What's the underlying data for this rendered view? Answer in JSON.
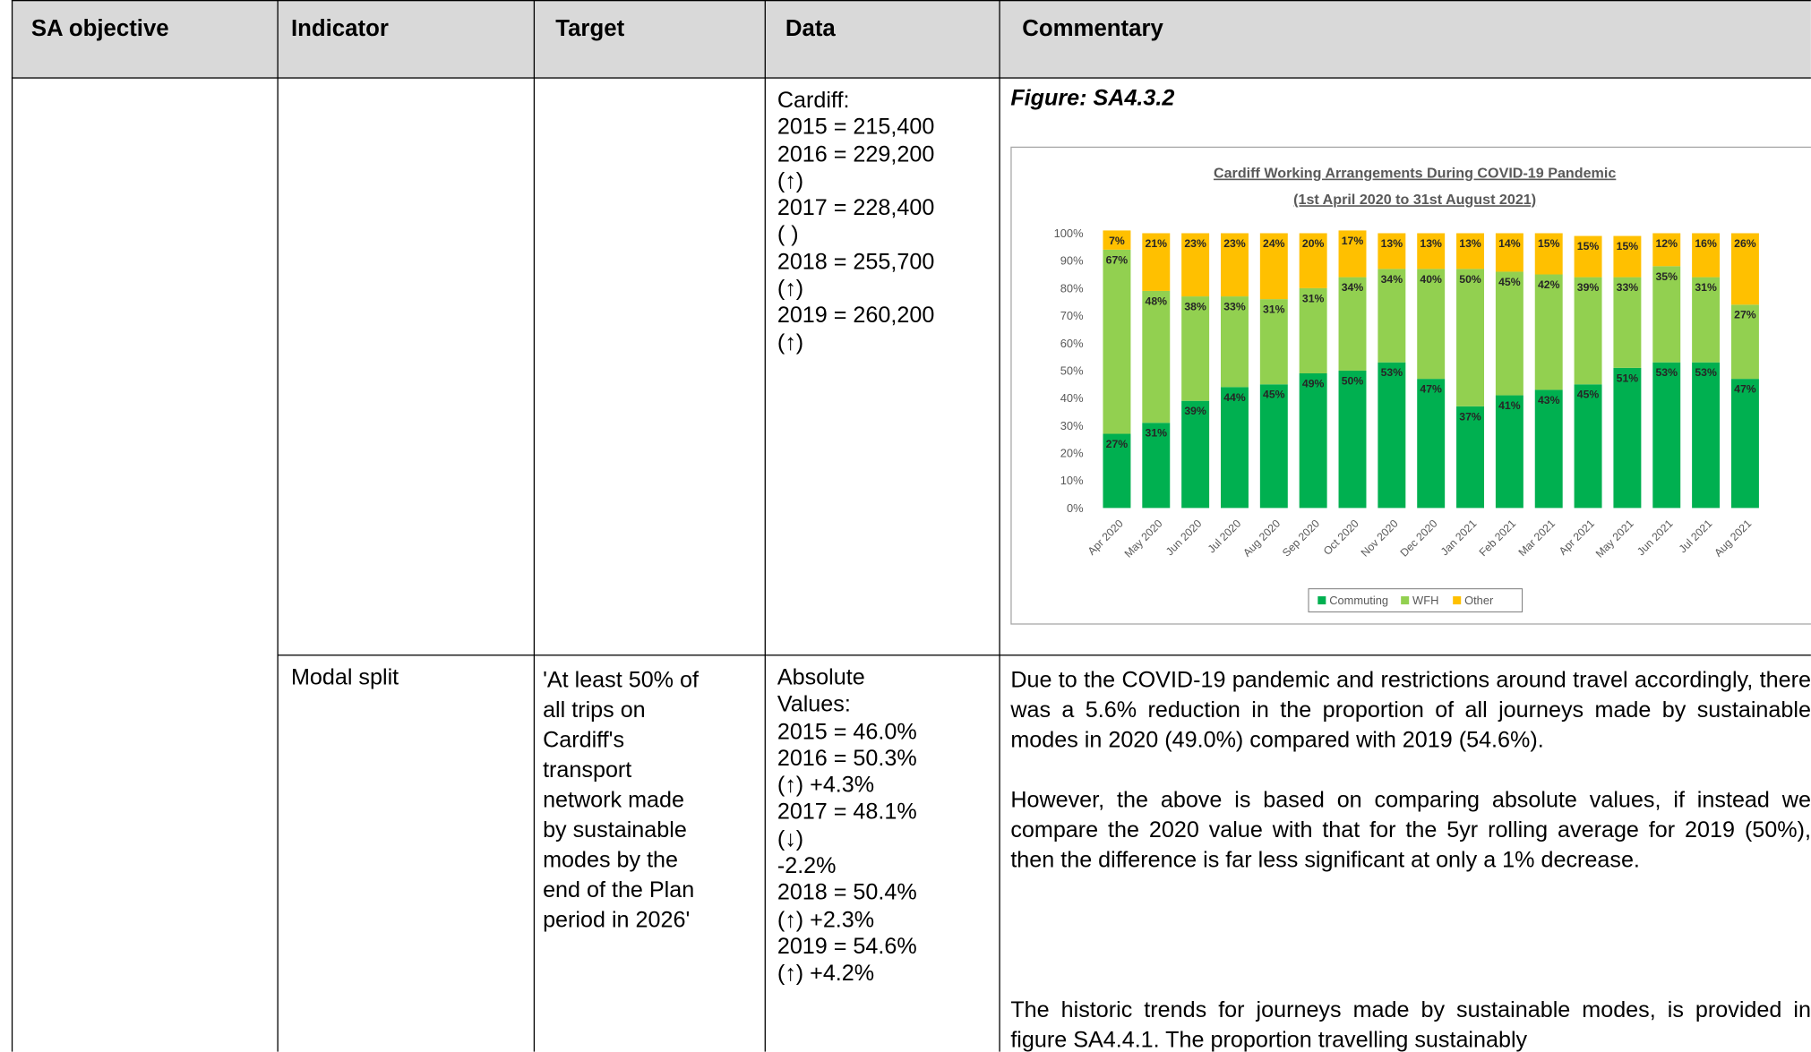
{
  "table": {
    "header": [
      "SA objective",
      "Indicator",
      "Target",
      "Data",
      "Commentary"
    ],
    "rows": [
      {
        "data": [
          "Cardiff:",
          "2015 = 215,400",
          "2016 = 229,200",
          "(↑)",
          "2017 = 228,400",
          "( )",
          "2018 = 255,700",
          "(↑)",
          "2019 = 260,200",
          "(↑)"
        ],
        "figure_label": "Figure: SA4.3.2"
      },
      {
        "indicator": "Modal split",
        "target": [
          "'At least 50% of",
          "all trips on",
          "Cardiff's",
          "transport",
          "network made",
          "by sustainable",
          "modes by the",
          "end of the Plan",
          "period in 2026'"
        ],
        "data": [
          "Absolute",
          "Values:",
          "2015 = 46.0%",
          "2016 = 50.3%",
          "(↑) +4.3%",
          "2017 = 48.1%",
          "(↓)",
          "-2.2%",
          "2018 = 50.4%",
          "(↑) +2.3%",
          "2019 = 54.6%",
          "(↑) +4.2%"
        ],
        "commentary": [
          "Due to the COVID-19 pandemic and restrictions around travel accordingly, there was a 5.6% reduction in the proportion of all journeys made by sustainable modes in 2020 (49.0%) compared with 2019 (54.6%).",
          "However, the above is based on comparing absolute values, if instead we compare the 2020 value with that for the 5yr rolling average for 2019 (50%), then the difference is far less significant at only a 1% decrease.",
          "The historic trends for journeys made by sustainable modes, is provided in figure SA4.4.1. The proportion travelling sustainably"
        ]
      }
    ]
  },
  "chart_data": {
    "type": "stacked_bar",
    "title": "Cardiff Working Arrangements During COVID-19 Pandemic",
    "subtitle": "(1st April 2020 to 31st August 2021)",
    "categories": [
      "Apr 2020",
      "May 2020",
      "Jun 2020",
      "Jul 2020",
      "Aug 2020",
      "Sep 2020",
      "Oct 2020",
      "Nov 2020",
      "Dec 2020",
      "Jan 2021",
      "Feb 2021",
      "Mar 2021",
      "Apr 2021",
      "May 2021",
      "Jun 2021",
      "Jul 2021",
      "Aug 2021"
    ],
    "series": [
      {
        "name": "Commuting",
        "color": "#00b050",
        "values": [
          27,
          31,
          39,
          44,
          45,
          49,
          50,
          53,
          47,
          37,
          41,
          43,
          45,
          51,
          53,
          53,
          47
        ],
        "value_labels": [
          "27%",
          "31%",
          "39%",
          "44%",
          "45%",
          "49%",
          "50%",
          "53%",
          "47%",
          "37%",
          "41%",
          "43%",
          "45%",
          "51%",
          "53%",
          "53%",
          "47%"
        ]
      },
      {
        "name": "WFH",
        "color": "#92d050",
        "values": [
          67,
          48,
          38,
          33,
          31,
          31,
          34,
          34,
          40,
          50,
          45,
          42,
          39,
          33,
          35,
          31,
          27
        ],
        "value_labels": [
          "67%",
          "48%",
          "38%",
          "33%",
          "31%",
          "31%",
          "34%",
          "34%",
          "40%",
          "50%",
          "45%",
          "42%",
          "39%",
          "33%",
          "35%",
          "31%",
          "27%"
        ]
      },
      {
        "name": "Other",
        "color": "#ffc000",
        "values": [
          7,
          21,
          23,
          23,
          24,
          20,
          17,
          13,
          13,
          13,
          14,
          15,
          15,
          15,
          12,
          16,
          26
        ],
        "value_labels": [
          "7%",
          "21%",
          "23%",
          "23%",
          "24%",
          "20%",
          "17%",
          "13%",
          "13%",
          "13%",
          "14%",
          "15%",
          "15%",
          "15%",
          "12%",
          "16%",
          "26%"
        ]
      }
    ],
    "ylim": [
      0,
      100
    ],
    "yticks": [
      {
        "value": 0,
        "label": "0%"
      },
      {
        "value": 10,
        "label": "10%"
      },
      {
        "value": 20,
        "label": "20%"
      },
      {
        "value": 30,
        "label": "30%"
      },
      {
        "value": 40,
        "label": "40%"
      },
      {
        "value": 50,
        "label": "50%"
      },
      {
        "value": 60,
        "label": "60%"
      },
      {
        "value": 70,
        "label": "70%"
      },
      {
        "value": 80,
        "label": "80%"
      },
      {
        "value": 90,
        "label": "90%"
      },
      {
        "value": 100,
        "label": "100%"
      }
    ],
    "grid": false,
    "legend": "bottom"
  }
}
